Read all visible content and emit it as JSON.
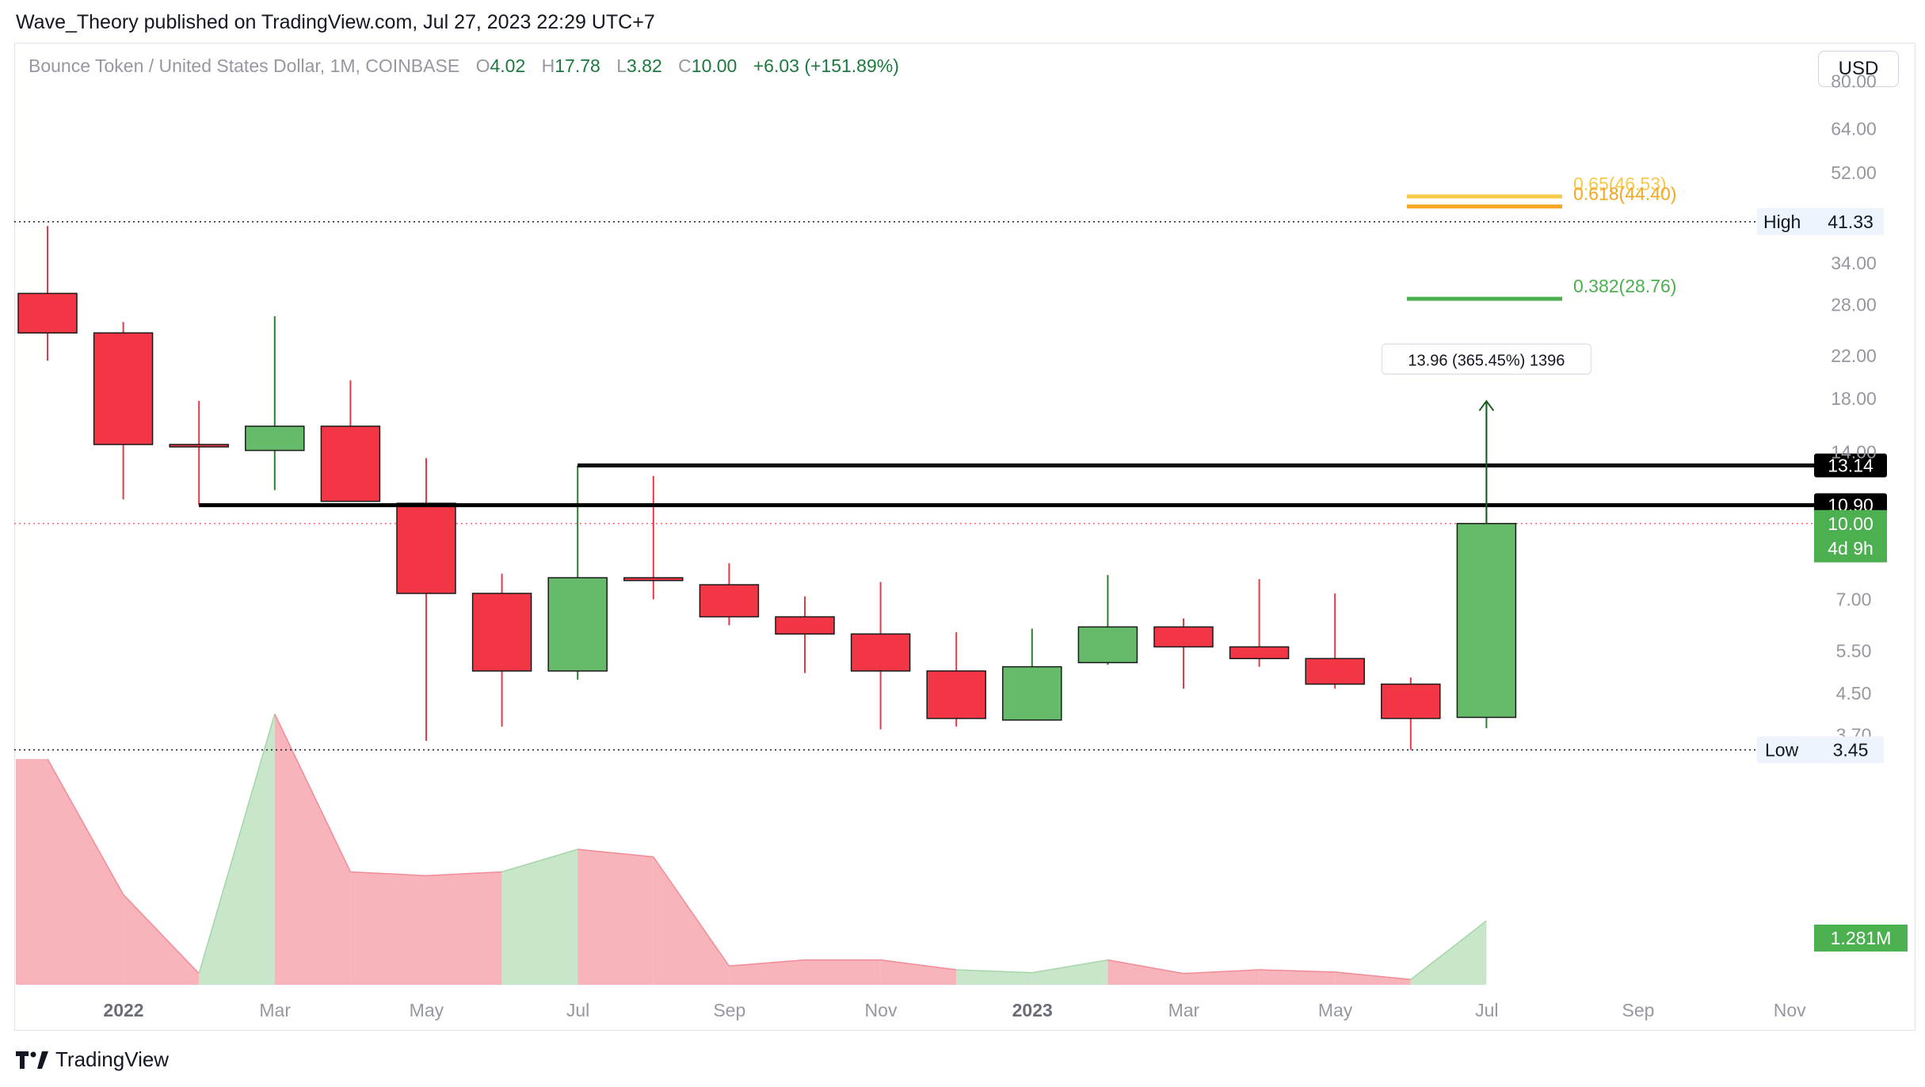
{
  "publication": {
    "text": "Wave_Theory published on TradingView.com, Jul 27, 2023 22:29 UTC+7"
  },
  "header": {
    "symbol": "Bounce Token / United States Dollar, 1M, COINBASE",
    "o_label": "O",
    "o_value": "4.02",
    "h_label": "H",
    "h_value": "17.78",
    "l_label": "L",
    "l_value": "3.82",
    "c_label": "C",
    "c_value": "10.00",
    "change": "+6.03 (+151.89%)",
    "currency": "USD"
  },
  "footer": {
    "brand": "TradingView",
    "logo_icon": "tradingview-logo-icon"
  },
  "colors": {
    "up": "#66bb6a",
    "down": "#f23645",
    "up_vol": "#c8e6c9",
    "down_vol": "#f8b4bb",
    "fib_065": "#f7c948",
    "fib_0618": "#f5a623",
    "fib_0382": "#4caf50"
  },
  "chart_data": {
    "type": "candlestick",
    "interval": "1M",
    "y_scale": "log",
    "y_ticks": [
      "80.00",
      "64.00",
      "52.00",
      "34.00",
      "28.00",
      "22.00",
      "18.00",
      "14.00",
      "7.00",
      "5.50",
      "4.50",
      "3.70"
    ],
    "x_ticks": [
      {
        "label": "2022",
        "bold": true
      },
      {
        "label": "Mar"
      },
      {
        "label": "May"
      },
      {
        "label": "Jul"
      },
      {
        "label": "Sep"
      },
      {
        "label": "Nov"
      },
      {
        "label": "2023",
        "bold": true
      },
      {
        "label": "Mar"
      },
      {
        "label": "May"
      },
      {
        "label": "Jul"
      },
      {
        "label": "Sep"
      },
      {
        "label": "Nov"
      }
    ],
    "candles": [
      {
        "month": "2021-12",
        "o": 29.5,
        "h": 40.5,
        "l": 21.5,
        "c": 24.5
      },
      {
        "month": "2022-01",
        "o": 24.5,
        "h": 25.8,
        "l": 11.2,
        "c": 14.5
      },
      {
        "month": "2022-02",
        "o": 14.5,
        "h": 17.8,
        "l": 10.9,
        "c": 14.4
      },
      {
        "month": "2022-03",
        "o": 14.1,
        "h": 26.5,
        "l": 11.7,
        "c": 15.8
      },
      {
        "month": "2022-04",
        "o": 15.8,
        "h": 19.6,
        "l": 11.1,
        "c": 11.1
      },
      {
        "month": "2022-05",
        "o": 11.0,
        "h": 13.6,
        "l": 3.6,
        "c": 7.2
      },
      {
        "month": "2022-06",
        "o": 7.2,
        "h": 7.9,
        "l": 3.85,
        "c": 5.0
      },
      {
        "month": "2022-07",
        "o": 5.0,
        "h": 13.14,
        "l": 4.8,
        "c": 7.75
      },
      {
        "month": "2022-08",
        "o": 7.75,
        "h": 12.5,
        "l": 7.0,
        "c": 7.65
      },
      {
        "month": "2022-09",
        "o": 7.5,
        "h": 8.3,
        "l": 6.2,
        "c": 6.45
      },
      {
        "month": "2022-10",
        "o": 6.45,
        "h": 7.1,
        "l": 4.95,
        "c": 5.95
      },
      {
        "month": "2022-11",
        "o": 5.95,
        "h": 7.6,
        "l": 3.8,
        "c": 5.0
      },
      {
        "month": "2022-12",
        "o": 5.0,
        "h": 6.0,
        "l": 3.85,
        "c": 4.0
      },
      {
        "month": "2023-01",
        "o": 3.97,
        "h": 6.1,
        "l": 3.97,
        "c": 5.1
      },
      {
        "month": "2023-02",
        "o": 5.2,
        "h": 7.85,
        "l": 5.15,
        "c": 6.15
      },
      {
        "month": "2023-03",
        "o": 6.15,
        "h": 6.4,
        "l": 4.6,
        "c": 5.6
      },
      {
        "month": "2023-04",
        "o": 5.6,
        "h": 7.7,
        "l": 5.1,
        "c": 5.3
      },
      {
        "month": "2023-05",
        "o": 5.3,
        "h": 7.2,
        "l": 4.6,
        "c": 4.7
      },
      {
        "month": "2023-06",
        "o": 4.7,
        "h": 4.85,
        "l": 3.45,
        "c": 4.0
      },
      {
        "month": "2023-07",
        "o": 4.02,
        "h": 17.78,
        "l": 3.82,
        "c": 10.0
      }
    ],
    "volume": {
      "values": [
        300,
        120,
        15,
        360,
        150,
        145,
        150,
        180,
        170,
        25,
        33,
        33,
        20,
        16,
        33,
        15,
        20,
        17,
        7,
        85
      ],
      "direction": [
        "down",
        "down",
        "down",
        "up",
        "down",
        "down",
        "down",
        "up",
        "down",
        "down",
        "down",
        "down",
        "down",
        "up",
        "up",
        "down",
        "down",
        "down",
        "down",
        "up"
      ]
    },
    "horizontal_lines": [
      {
        "value": 13.14,
        "label": "13.14",
        "start_month": "2022-07"
      },
      {
        "value": 10.9,
        "label": "10.90",
        "start_month": "2022-02"
      }
    ],
    "fib_levels": [
      {
        "ratio": "0.65",
        "value": 46.53,
        "label": "0.65(46.53)"
      },
      {
        "ratio": "0.618",
        "value": 44.4,
        "label": "0.618(44.40)"
      },
      {
        "ratio": "0.382",
        "value": 28.76,
        "label": "0.382(28.76)"
      }
    ],
    "high": {
      "label": "High",
      "value": "41.33"
    },
    "low": {
      "label": "Low",
      "value": "3.45"
    },
    "last_price": {
      "value": "10.00",
      "countdown": "4d 9h"
    },
    "volume_label": "1.281M",
    "measure": {
      "label": "13.96 (365.45%) 1396",
      "from": 3.82,
      "to": 17.78
    }
  }
}
